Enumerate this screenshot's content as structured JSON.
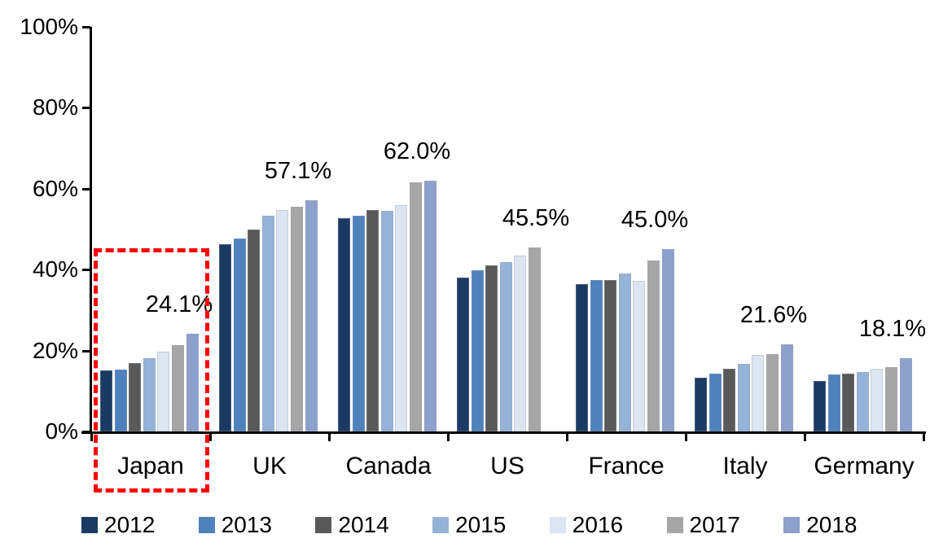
{
  "chart_data": {
    "type": "bar",
    "title": "",
    "xlabel": "",
    "ylabel": "",
    "ylim": [
      0,
      100
    ],
    "y_tick_labels": [
      "100%",
      "80%",
      "60%",
      "40%",
      "20%",
      "0%"
    ],
    "grid": false,
    "legend_position": "bottom",
    "categories": [
      "Japan",
      "UK",
      "Canada",
      "US",
      "France",
      "Italy",
      "Germany"
    ],
    "series": [
      {
        "name": "2012",
        "color": "#1B3A63",
        "values": [
          15.1,
          46.3,
          52.7,
          38.1,
          36.5,
          13.2,
          12.4
        ]
      },
      {
        "name": "2013",
        "color": "#4F81BD",
        "values": [
          15.3,
          47.7,
          53.3,
          39.9,
          37.5,
          14.2,
          14.0
        ]
      },
      {
        "name": "2014",
        "color": "#595959",
        "values": [
          16.9,
          49.9,
          54.7,
          41.1,
          37.5,
          15.4,
          14.2
        ]
      },
      {
        "name": "2015",
        "color": "#95B3D7",
        "values": [
          18.2,
          53.3,
          54.5,
          41.9,
          39.1,
          16.8,
          14.6
        ]
      },
      {
        "name": "2016",
        "color": "#DCE6F2",
        "values": [
          19.8,
          54.7,
          56.0,
          43.5,
          37.3,
          19.0,
          15.4
        ]
      },
      {
        "name": "2017",
        "color": "#A6A6A6",
        "values": [
          21.3,
          55.5,
          61.5,
          45.5,
          42.3,
          19.2,
          15.8
        ]
      },
      {
        "name": "2018",
        "color": "#8EA0CC",
        "values": [
          24.1,
          57.1,
          62.0,
          null,
          45.0,
          21.6,
          18.1
        ]
      }
    ],
    "data_labels": [
      "24.1%",
      "57.1%",
      "62.0%",
      "45.5%",
      "45.0%",
      "21.6%",
      "18.1%"
    ],
    "annotations": {
      "highlight_box": {
        "category": "Japan",
        "style": "dashed",
        "color": "#FB0000"
      }
    }
  }
}
